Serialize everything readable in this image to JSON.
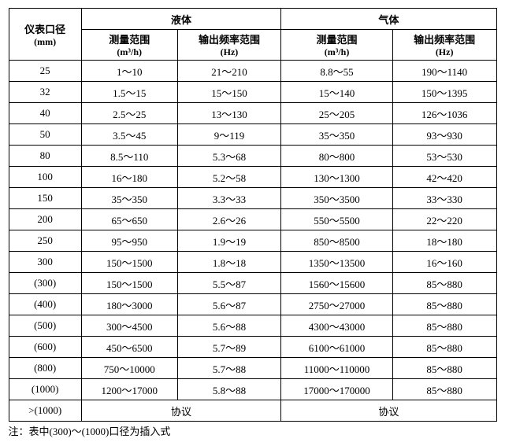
{
  "headers": {
    "col0_line1": "仪表口径",
    "col0_line2": "(mm)",
    "group1": "液体",
    "group2": "气体",
    "sub1_line1": "测量范围",
    "sub1_line2": "(m³/h)",
    "sub2_line1": "输出频率范围",
    "sub2_line2": "(Hz)",
    "sub3_line1": "测量范围",
    "sub3_line2": "(m³/h)",
    "sub4_line1": "输出频率范围",
    "sub4_line2": "(Hz)"
  },
  "rows": [
    {
      "dn": "25",
      "lr": "1～10",
      "lf": "21～210",
      "gr": "8.8～55",
      "gf": "190～1140"
    },
    {
      "dn": "32",
      "lr": "1.5～15",
      "lf": "15～150",
      "gr": "15～140",
      "gf": "150～1395"
    },
    {
      "dn": "40",
      "lr": "2.5～25",
      "lf": "13～130",
      "gr": "25～205",
      "gf": "126～1036"
    },
    {
      "dn": "50",
      "lr": "3.5～45",
      "lf": "9～119",
      "gr": "35～350",
      "gf": "93～930"
    },
    {
      "dn": "80",
      "lr": "8.5～110",
      "lf": "5.3～68",
      "gr": "80～800",
      "gf": "53～530"
    },
    {
      "dn": "100",
      "lr": "16～180",
      "lf": "5.2～58",
      "gr": "130～1300",
      "gf": "42～420"
    },
    {
      "dn": "150",
      "lr": "35～350",
      "lf": "3.3～33",
      "gr": "350～3500",
      "gf": "33～330"
    },
    {
      "dn": "200",
      "lr": "65～650",
      "lf": "2.6～26",
      "gr": "550～5500",
      "gf": "22～220"
    },
    {
      "dn": "250",
      "lr": "95～950",
      "lf": "1.9～19",
      "gr": "850～8500",
      "gf": "18～180"
    },
    {
      "dn": "300",
      "lr": "150～1500",
      "lf": "1.8～18",
      "gr": "1350～13500",
      "gf": "16～160"
    },
    {
      "dn": "(300)",
      "lr": "150～1500",
      "lf": "5.5～87",
      "gr": "1560～15600",
      "gf": "85～880"
    },
    {
      "dn": "(400)",
      "lr": "180～3000",
      "lf": "5.6～87",
      "gr": "2750～27000",
      "gf": "85～880"
    },
    {
      "dn": "(500)",
      "lr": "300～4500",
      "lf": "5.6～88",
      "gr": "4300～43000",
      "gf": "85～880"
    },
    {
      "dn": "(600)",
      "lr": "450～6500",
      "lf": "5.7～89",
      "gr": "6100～61000",
      "gf": "85～880"
    },
    {
      "dn": "(800)",
      "lr": "750～10000",
      "lf": "5.7～88",
      "gr": "11000～110000",
      "gf": "85～880"
    },
    {
      "dn": "(1000)",
      "lr": "1200～17000",
      "lf": "5.8～88",
      "gr": "17000～170000",
      "gf": "85～880"
    }
  ],
  "last_row": {
    "dn": ">(1000)",
    "liquid": "协议",
    "gas": "协议"
  },
  "note": "注：表中(300)～(1000)口径为插入式"
}
